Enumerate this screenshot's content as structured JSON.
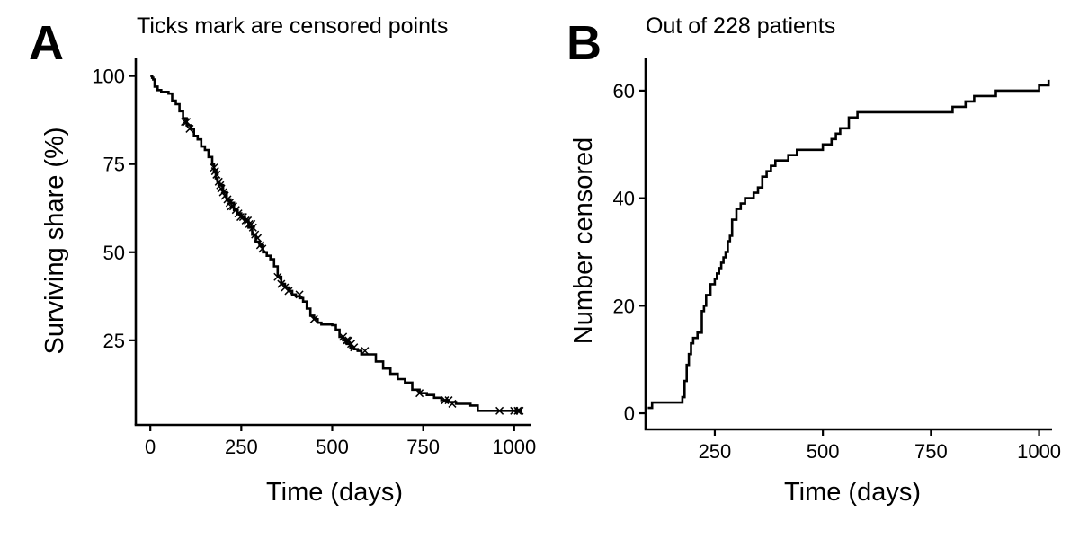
{
  "chart_data": [
    {
      "panel": "A",
      "type": "line",
      "subtitle": "Ticks mark are censored points",
      "xlabel": "Time (days)",
      "ylabel": "Surviving share (%)",
      "xlim": [
        -40,
        1045
      ],
      "ylim": [
        1,
        105
      ],
      "xticks": [
        0,
        250,
        500,
        750,
        1000
      ],
      "yticks": [
        25,
        50,
        75,
        100
      ],
      "step": true,
      "grid": false,
      "series": [
        {
          "x": [
            0,
            5,
            8,
            12,
            20,
            30,
            50,
            60,
            70,
            80,
            90,
            100,
            110,
            120,
            130,
            140,
            150,
            160,
            170,
            175,
            180,
            185,
            190,
            200,
            210,
            220,
            230,
            240,
            250,
            260,
            270,
            280,
            290,
            300,
            310,
            320,
            330,
            340,
            350,
            360,
            370,
            380,
            390,
            400,
            410,
            420,
            430,
            440,
            450,
            460,
            470,
            480,
            490,
            500,
            510,
            520,
            530,
            540,
            550,
            560,
            570,
            580,
            590,
            600,
            620,
            640,
            660,
            680,
            700,
            720,
            740,
            760,
            780,
            800,
            820,
            840,
            860,
            880,
            900,
            930,
            960,
            990,
            1022
          ],
          "y": [
            100,
            99.5,
            99,
            97,
            96,
            95.5,
            95,
            93,
            92,
            90,
            88,
            86,
            85,
            83,
            82,
            80,
            79,
            77,
            75,
            73,
            71,
            70,
            69,
            67,
            65,
            64,
            62,
            61,
            60,
            59,
            57,
            55,
            53,
            52,
            50,
            49,
            48,
            46,
            43,
            41,
            40,
            39,
            38,
            37.5,
            37,
            36,
            34,
            32,
            31,
            30,
            29.5,
            29.5,
            29.5,
            29.3,
            28,
            26,
            25,
            24,
            23,
            22.5,
            22,
            21,
            21,
            21,
            19,
            17,
            15.5,
            14,
            13,
            11,
            10,
            9.5,
            8.7,
            8,
            7.5,
            7,
            7,
            6.5,
            5,
            5,
            5,
            5,
            5
          ]
        }
      ],
      "censored": {
        "x": [
          95,
          100,
          108,
          175,
          178,
          182,
          188,
          192,
          195,
          200,
          205,
          212,
          218,
          222,
          228,
          235,
          242,
          248,
          255,
          262,
          268,
          272,
          278,
          282,
          288,
          295,
          302,
          308,
          350,
          360,
          370,
          380,
          410,
          450,
          530,
          540,
          545,
          552,
          560,
          590,
          740,
          810,
          820,
          830,
          960,
          1000,
          1010,
          1015
        ],
        "y": [
          87,
          87,
          85,
          74,
          73,
          72,
          70,
          69,
          68,
          67,
          66,
          65,
          64,
          63,
          63,
          62,
          61,
          60,
          60,
          59,
          59,
          58,
          58,
          57,
          55,
          54,
          52,
          51,
          43,
          41,
          40,
          39,
          38,
          31,
          26,
          25,
          25,
          24,
          23,
          22,
          10,
          8,
          8,
          7,
          5,
          5,
          5,
          5
        ]
      }
    },
    {
      "panel": "B",
      "type": "line",
      "subtitle": "Out of 228 patients",
      "xlabel": "Time (days)",
      "ylabel": "Number censored",
      "xlim": [
        90,
        1030
      ],
      "ylim": [
        -3,
        66
      ],
      "xticks": [
        250,
        500,
        750,
        1000
      ],
      "yticks": [
        0,
        20,
        40,
        60
      ],
      "step": true,
      "grid": false,
      "series": [
        {
          "x": [
            95,
            105,
            175,
            180,
            185,
            190,
            195,
            200,
            210,
            220,
            225,
            230,
            240,
            250,
            255,
            260,
            265,
            270,
            275,
            280,
            285,
            290,
            300,
            310,
            320,
            330,
            340,
            350,
            360,
            370,
            380,
            390,
            400,
            420,
            440,
            450,
            500,
            520,
            530,
            540,
            560,
            580,
            700,
            750,
            800,
            830,
            850,
            900,
            1000,
            1010,
            1022
          ],
          "y": [
            1,
            2,
            3,
            6,
            9,
            11,
            13,
            14,
            15,
            19,
            20,
            22,
            24,
            25,
            26,
            27,
            28,
            29,
            30,
            32,
            33,
            36,
            38,
            39,
            40,
            40,
            41,
            42,
            44,
            45,
            46,
            47,
            47,
            48,
            49,
            49,
            50,
            51,
            52,
            53,
            55,
            56,
            56,
            56,
            57,
            58,
            59,
            60,
            61,
            61,
            62
          ]
        }
      ]
    }
  ]
}
